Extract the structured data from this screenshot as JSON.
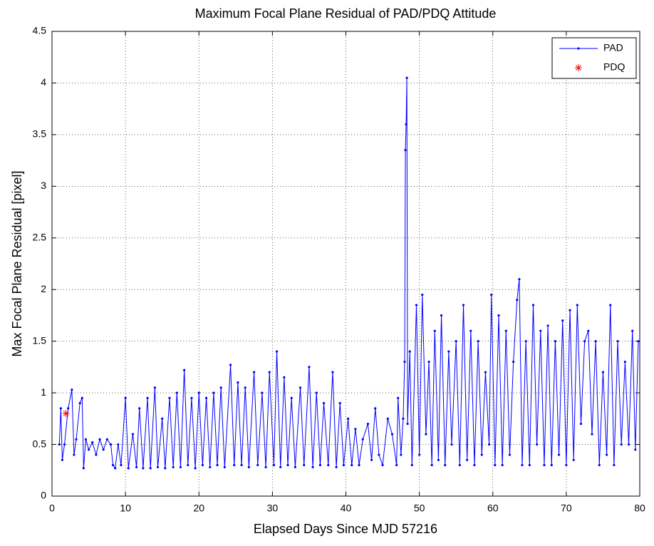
{
  "chart_data": {
    "type": "line",
    "title": "Maximum Focal Plane Residual of PAD/PDQ Attitude",
    "xlabel": "Elapsed Days Since MJD 57216",
    "ylabel": "Max Focal Plane Residual [pixel]",
    "xlim": [
      0,
      80
    ],
    "ylim": [
      0,
      4.5
    ],
    "xticks": [
      0,
      10,
      20,
      30,
      40,
      50,
      60,
      70,
      80
    ],
    "yticks": [
      0,
      0.5,
      1,
      1.5,
      2,
      2.5,
      3,
      3.5,
      4,
      4.5
    ],
    "grid": true,
    "legend": "upper right",
    "series": [
      {
        "name": "PAD",
        "color": "#0000ff",
        "marker": "dot",
        "x": [
          1.0,
          1.2,
          1.4,
          1.7,
          2.2,
          2.7,
          3.0,
          3.3,
          3.8,
          4.1,
          4.3,
          4.6,
          5.0,
          5.5,
          6.0,
          6.5,
          7.0,
          7.5,
          8.0,
          8.3,
          8.6,
          9.0,
          9.4,
          10.0,
          10.4,
          11.0,
          11.5,
          11.9,
          12.4,
          13.0,
          13.4,
          14.0,
          14.4,
          15.0,
          15.4,
          16.0,
          16.5,
          17.0,
          17.5,
          18.0,
          18.5,
          19.0,
          19.5,
          20.0,
          20.5,
          21.0,
          21.5,
          22.0,
          22.5,
          23.0,
          23.5,
          24.3,
          24.8,
          25.3,
          25.8,
          26.3,
          26.8,
          27.5,
          28.0,
          28.6,
          29.1,
          29.6,
          30.2,
          30.6,
          31.1,
          31.6,
          32.1,
          32.6,
          33.1,
          33.8,
          34.3,
          35.0,
          35.5,
          36.0,
          36.5,
          37.0,
          37.6,
          38.2,
          38.7,
          39.2,
          39.7,
          40.3,
          40.8,
          41.3,
          41.8,
          42.3,
          43.0,
          43.5,
          44.0,
          44.5,
          45.0,
          45.7,
          46.3,
          46.9,
          47.1,
          47.5,
          47.8,
          48.0,
          48.1,
          48.2,
          48.3,
          48.4,
          48.7,
          49.0,
          49.6,
          50.0,
          50.4,
          50.9,
          51.3,
          51.7,
          52.1,
          52.6,
          53.0,
          53.5,
          54.0,
          54.4,
          55.0,
          55.5,
          56.0,
          56.5,
          57.0,
          57.5,
          58.0,
          58.5,
          59.0,
          59.5,
          59.8,
          60.3,
          60.8,
          61.3,
          61.8,
          62.3,
          62.8,
          63.3,
          63.6,
          64.0,
          64.5,
          65.0,
          65.5,
          66.0,
          66.5,
          67.0,
          67.5,
          68.0,
          68.5,
          69.0,
          69.5,
          70.0,
          70.5,
          71.0,
          71.5,
          72.0,
          72.5,
          73.0,
          73.5,
          74.0,
          74.5,
          75.0,
          75.5,
          76.0,
          76.5,
          77.0,
          77.5,
          78.0,
          78.5,
          79.0,
          79.4,
          79.8
        ],
        "values": [
          0.5,
          0.85,
          0.35,
          0.5,
          0.85,
          1.03,
          0.4,
          0.55,
          0.9,
          0.95,
          0.27,
          0.55,
          0.45,
          0.52,
          0.4,
          0.55,
          0.45,
          0.55,
          0.5,
          0.3,
          0.27,
          0.5,
          0.3,
          0.95,
          0.27,
          0.6,
          0.28,
          0.85,
          0.27,
          0.95,
          0.27,
          1.05,
          0.28,
          0.75,
          0.27,
          0.95,
          0.28,
          1.0,
          0.28,
          1.22,
          0.3,
          0.95,
          0.27,
          1.0,
          0.3,
          0.95,
          0.28,
          1.0,
          0.3,
          1.05,
          0.28,
          1.27,
          0.3,
          1.1,
          0.3,
          1.05,
          0.28,
          1.2,
          0.3,
          1.0,
          0.28,
          1.2,
          0.3,
          1.4,
          0.28,
          1.15,
          0.3,
          0.95,
          0.28,
          1.05,
          0.3,
          1.25,
          0.28,
          1.0,
          0.3,
          0.9,
          0.3,
          1.2,
          0.28,
          0.9,
          0.3,
          0.75,
          0.3,
          0.65,
          0.3,
          0.55,
          0.7,
          0.35,
          0.85,
          0.4,
          0.3,
          0.75,
          0.6,
          0.3,
          0.95,
          0.4,
          0.75,
          1.3,
          3.35,
          3.6,
          4.05,
          0.7,
          1.4,
          0.3,
          1.85,
          0.4,
          1.95,
          0.6,
          1.3,
          0.3,
          1.6,
          0.35,
          1.75,
          0.3,
          1.4,
          0.5,
          1.5,
          0.3,
          1.85,
          0.35,
          1.6,
          0.3,
          1.5,
          0.4,
          1.2,
          0.5,
          1.95,
          0.3,
          1.75,
          0.3,
          1.6,
          0.4,
          1.3,
          1.9,
          2.1,
          0.3,
          1.5,
          0.3,
          1.85,
          0.5,
          1.6,
          0.3,
          1.65,
          0.3,
          1.5,
          0.4,
          1.7,
          0.3,
          1.8,
          0.35,
          1.85,
          0.7,
          1.5,
          1.6,
          0.6,
          1.5,
          0.3,
          1.2,
          0.4,
          1.85,
          0.3,
          1.5,
          0.5,
          1.3,
          0.5,
          1.6,
          0.45,
          1.5
        ]
      },
      {
        "name": "PDQ",
        "color": "#ff0000",
        "marker": "asterisk",
        "x": [
          1.9
        ],
        "values": [
          0.8
        ]
      }
    ]
  }
}
